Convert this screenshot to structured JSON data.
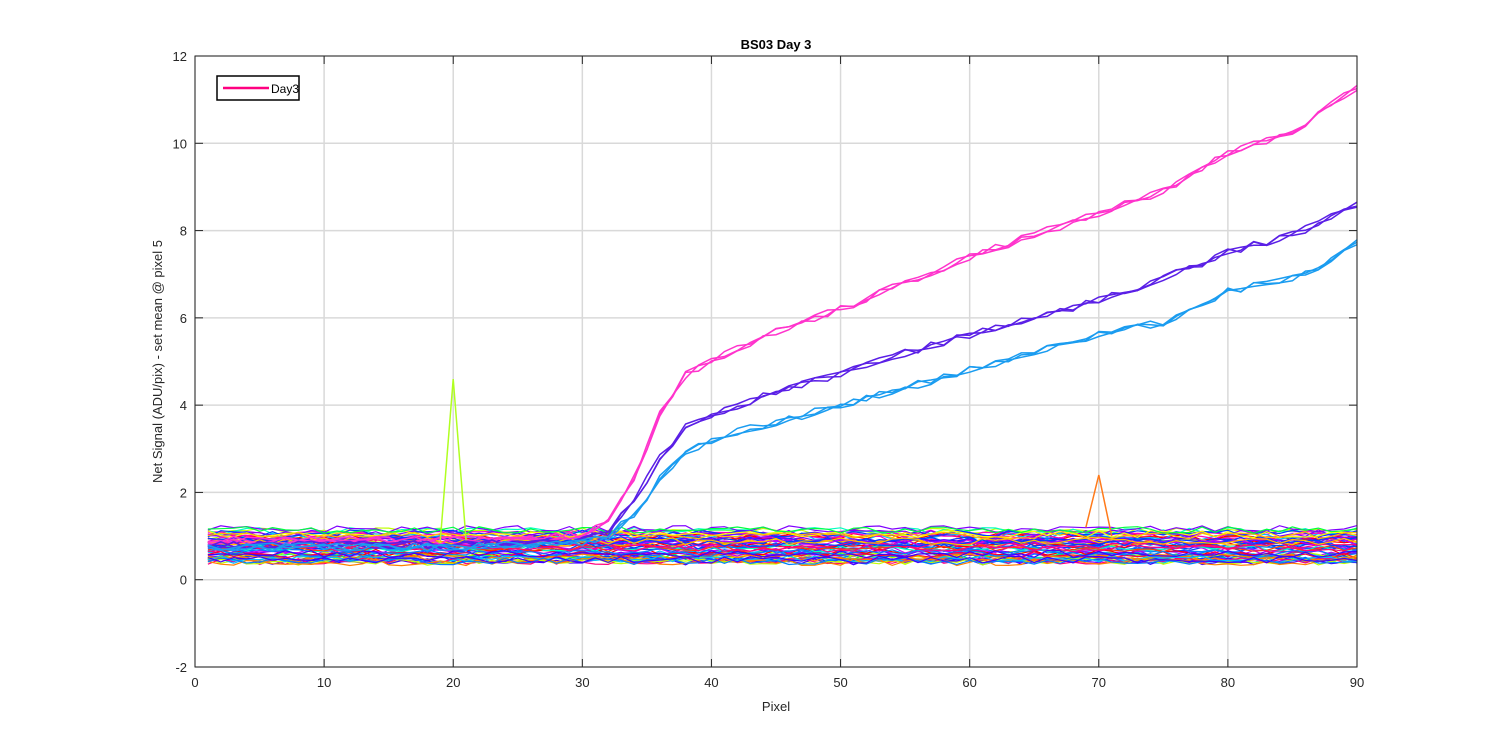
{
  "chart_data": {
    "type": "line",
    "title": "BS03 Day 3",
    "xlabel": "Pixel",
    "ylabel": "Net Signal (ADU/pix) - set mean @ pixel 5",
    "xlim": [
      0,
      90
    ],
    "ylim": [
      -2,
      12
    ],
    "xticks": [
      0,
      10,
      20,
      30,
      40,
      50,
      60,
      70,
      80,
      90
    ],
    "yticks": [
      -2,
      0,
      2,
      4,
      6,
      8,
      10,
      12
    ],
    "grid": true,
    "legend": {
      "entries": [
        {
          "name": "Day3",
          "color": "#ff0080"
        }
      ],
      "location": "top-left"
    },
    "x_range": [
      1,
      90
    ],
    "background_curves": {
      "description_counts": 60,
      "colors": [
        "#ff0000",
        "#ff4000",
        "#ff8000",
        "#ffbf00",
        "#ffff00",
        "#bfff00",
        "#80ff00",
        "#00ff40",
        "#00ffbf",
        "#00bfff",
        "#0080ff",
        "#0040ff",
        "#4000ff",
        "#8000ff",
        "#bf00ff",
        "#ff00bf",
        "#ff0080",
        "#ff0040"
      ],
      "baseline_range": [
        0.2,
        1.2
      ]
    },
    "series": [
      {
        "color": "#ff33cc",
        "count": 3,
        "points": [
          [
            1,
            0.9
          ],
          [
            20,
            0.9
          ],
          [
            30,
            1.0
          ],
          [
            32,
            1.3
          ],
          [
            34,
            2.3
          ],
          [
            36,
            3.8
          ],
          [
            38,
            4.7
          ],
          [
            40,
            5.0
          ],
          [
            42,
            5.3
          ],
          [
            45,
            5.7
          ],
          [
            50,
            6.2
          ],
          [
            55,
            6.8
          ],
          [
            60,
            7.4
          ],
          [
            65,
            7.9
          ],
          [
            70,
            8.4
          ],
          [
            75,
            8.9
          ],
          [
            80,
            9.8
          ],
          [
            85,
            10.2
          ],
          [
            88,
            10.9
          ],
          [
            90,
            11.3
          ]
        ]
      },
      {
        "color": "#5a1fe6",
        "count": 3,
        "points": [
          [
            1,
            0.8
          ],
          [
            20,
            0.8
          ],
          [
            30,
            0.9
          ],
          [
            32,
            1.1
          ],
          [
            34,
            1.8
          ],
          [
            36,
            2.8
          ],
          [
            38,
            3.5
          ],
          [
            40,
            3.8
          ],
          [
            42,
            4.0
          ],
          [
            45,
            4.3
          ],
          [
            50,
            4.7
          ],
          [
            55,
            5.2
          ],
          [
            60,
            5.6
          ],
          [
            65,
            6.0
          ],
          [
            70,
            6.4
          ],
          [
            75,
            6.9
          ],
          [
            80,
            7.5
          ],
          [
            85,
            7.9
          ],
          [
            88,
            8.3
          ],
          [
            90,
            8.6
          ]
        ]
      },
      {
        "color": "#1a9cf0",
        "count": 3,
        "points": [
          [
            1,
            0.75
          ],
          [
            20,
            0.75
          ],
          [
            30,
            0.85
          ],
          [
            32,
            1.0
          ],
          [
            34,
            1.5
          ],
          [
            36,
            2.3
          ],
          [
            38,
            2.9
          ],
          [
            40,
            3.2
          ],
          [
            42,
            3.4
          ],
          [
            45,
            3.6
          ],
          [
            50,
            4.0
          ],
          [
            55,
            4.4
          ],
          [
            60,
            4.8
          ],
          [
            65,
            5.2
          ],
          [
            70,
            5.6
          ],
          [
            75,
            5.9
          ],
          [
            80,
            6.6
          ],
          [
            85,
            6.9
          ],
          [
            88,
            7.3
          ],
          [
            90,
            7.7
          ]
        ]
      },
      {
        "color": "#b0ff20",
        "count": 1,
        "spike": [
          [
            19,
            0.9
          ],
          [
            20,
            4.6
          ],
          [
            21,
            0.9
          ]
        ]
      },
      {
        "color": "#ff7a1a",
        "count": 1,
        "spike": [
          [
            69,
            1.2
          ],
          [
            70,
            2.4
          ],
          [
            71,
            1.0
          ]
        ]
      }
    ]
  }
}
